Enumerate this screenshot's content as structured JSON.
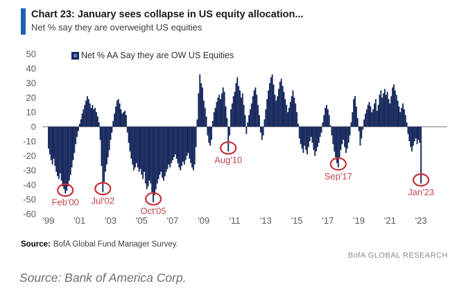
{
  "header": {
    "title": "Chart 23: January sees collapse in US equity allocation...",
    "subtitle": "Net % say they are overweight US equities"
  },
  "legend": {
    "label": "Net % AA Say they are OW US Equities"
  },
  "chart_data": {
    "type": "bar",
    "title": "Net % say they are overweight US equities",
    "series_name": "Net % AA Say they are OW US Equities",
    "x_start": "1999-01",
    "frequency": "monthly",
    "ylim": [
      -60,
      50
    ],
    "yticks": [
      50,
      40,
      30,
      20,
      10,
      0,
      -10,
      -20,
      -30,
      -40,
      -50,
      -60
    ],
    "xticks": [
      "'99",
      "'01",
      "'03",
      "'05",
      "'07",
      "'09",
      "'11",
      "'13",
      "'15",
      "'17",
      "'19",
      "'21",
      "'23"
    ],
    "grid": false,
    "legend_position": "top-left-inside",
    "values": [
      -15,
      -19,
      -23,
      -26,
      -22,
      -27,
      -31,
      -34,
      -36,
      -32,
      -37,
      -41,
      -43,
      -46,
      -44,
      -41,
      -37,
      -33,
      -28,
      -23,
      -18,
      -12,
      -7,
      -3,
      2,
      5,
      9,
      12,
      15,
      18,
      21,
      19,
      16,
      13,
      15,
      12,
      13,
      10,
      7,
      3,
      -9,
      -27,
      -45,
      -38,
      -31,
      -26,
      -21,
      -16,
      -9,
      -4,
      4,
      9,
      14,
      18,
      19,
      16,
      12,
      9,
      10,
      11,
      8,
      -4,
      -11,
      -17,
      -22,
      -26,
      -30,
      -28,
      -25,
      -28,
      -31,
      -29,
      -33,
      -36,
      -31,
      -39,
      -43,
      -41,
      -37,
      -39,
      -45,
      -52,
      -47,
      -43,
      -39,
      -36,
      -33,
      -31,
      -35,
      -37,
      -34,
      -31,
      -29,
      -26,
      -28,
      -25,
      -23,
      -21,
      -19,
      -22,
      -25,
      -28,
      -30,
      -27,
      -24,
      -26,
      -23,
      -20,
      -18,
      -22,
      -25,
      -28,
      -30,
      -26,
      -14,
      5,
      23,
      36,
      30,
      27,
      18,
      13,
      7,
      -6,
      -11,
      -13,
      -9,
      4,
      10,
      13,
      17,
      20,
      22,
      19,
      23,
      27,
      24,
      14,
      6,
      -17,
      -6,
      12,
      16,
      21,
      24,
      30,
      34,
      28,
      25,
      20,
      23,
      15,
      8,
      -5,
      3,
      8,
      12,
      16,
      21,
      25,
      27,
      22,
      15,
      8,
      -4,
      -9,
      -6,
      5,
      12,
      19,
      25,
      30,
      34,
      36,
      29,
      22,
      18,
      21,
      26,
      31,
      33,
      28,
      24,
      19,
      15,
      10,
      13,
      17,
      21,
      25,
      20,
      16,
      10,
      2,
      -8,
      -12,
      -15,
      -18,
      -13,
      -16,
      -19,
      -14,
      -10,
      -7,
      -11,
      -16,
      -20,
      -17,
      -14,
      -11,
      -7,
      -4,
      3,
      8,
      13,
      15,
      12,
      8,
      1,
      -6,
      -12,
      -17,
      -21,
      -25,
      -28,
      -21,
      -16,
      -12,
      -9,
      -14,
      -18,
      -15,
      -11,
      -6,
      3,
      10,
      19,
      21,
      14,
      6,
      -3,
      -13,
      -8,
      -2,
      5,
      9,
      12,
      15,
      17,
      14,
      10,
      12,
      16,
      19,
      11,
      15,
      22,
      25,
      20,
      23,
      26,
      22,
      24,
      19,
      16,
      21,
      27,
      29,
      25,
      22,
      18,
      14,
      10,
      13,
      16,
      12,
      8,
      3,
      -5,
      -10,
      -14,
      -17,
      -13,
      -10,
      -8,
      -12,
      -9,
      -11,
      -39
    ],
    "annotations": [
      {
        "label": "Feb'00",
        "month_index": 13,
        "value": -46
      },
      {
        "label": "Jul'02",
        "month_index": 42,
        "value": -45
      },
      {
        "label": "Oct'05",
        "month_index": 81,
        "value": -52
      },
      {
        "label": "Aug'10",
        "month_index": 139,
        "value": -17
      },
      {
        "label": "Sep'17",
        "month_index": 224,
        "value": -28
      },
      {
        "label": "Jan'23",
        "month_index": 288,
        "value": -39
      }
    ],
    "colors": {
      "bar": "#16285c",
      "annotation_circle": "#c62f38",
      "annotation_text": "#c4454d",
      "zero_line": "#8a8a8a",
      "accent": "#2061ae"
    }
  },
  "footer": {
    "source_label": "Source:",
    "source_text": "BofA Global Fund Manager Survey.",
    "brand": "BofA GLOBAL RESEARCH"
  },
  "caption": "Source: Bank of America Corp."
}
